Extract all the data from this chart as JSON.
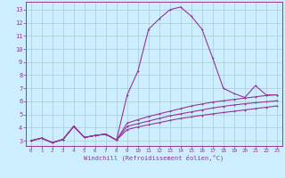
{
  "xlabel": "Windchill (Refroidissement éolien,°C)",
  "background_color": "#cceeff",
  "grid_color": "#aacccc",
  "line_color": "#993399",
  "x_values": [
    0,
    1,
    2,
    3,
    4,
    5,
    6,
    7,
    8,
    9,
    10,
    11,
    12,
    13,
    14,
    15,
    16,
    17,
    18,
    19,
    20,
    21,
    22,
    23
  ],
  "line1_y": [
    3.0,
    3.2,
    2.85,
    3.1,
    4.1,
    3.25,
    3.4,
    3.5,
    3.05,
    6.5,
    8.3,
    11.5,
    12.3,
    13.0,
    13.2,
    12.5,
    11.5,
    9.3,
    7.0,
    6.6,
    6.3,
    7.2,
    6.5,
    6.5
  ],
  "line2_y": [
    3.0,
    3.2,
    2.85,
    3.1,
    4.1,
    3.25,
    3.4,
    3.5,
    3.05,
    4.35,
    4.6,
    4.85,
    5.05,
    5.25,
    5.45,
    5.65,
    5.8,
    5.95,
    6.05,
    6.15,
    6.25,
    6.35,
    6.45,
    6.5
  ],
  "line3_y": [
    3.0,
    3.2,
    2.85,
    3.1,
    4.1,
    3.25,
    3.4,
    3.5,
    3.05,
    4.1,
    4.3,
    4.5,
    4.7,
    4.9,
    5.05,
    5.2,
    5.35,
    5.5,
    5.62,
    5.73,
    5.82,
    5.9,
    5.97,
    6.05
  ],
  "line4_y": [
    3.0,
    3.2,
    2.85,
    3.1,
    4.1,
    3.25,
    3.4,
    3.5,
    3.05,
    3.85,
    4.05,
    4.22,
    4.38,
    4.55,
    4.7,
    4.82,
    4.94,
    5.05,
    5.15,
    5.25,
    5.35,
    5.45,
    5.55,
    5.65
  ],
  "ylim": [
    2.6,
    13.6
  ],
  "xlim": [
    -0.5,
    23.5
  ],
  "yticks": [
    3,
    4,
    5,
    6,
    7,
    8,
    9,
    10,
    11,
    12,
    13
  ],
  "xticks": [
    0,
    1,
    2,
    3,
    4,
    5,
    6,
    7,
    8,
    9,
    10,
    11,
    12,
    13,
    14,
    15,
    16,
    17,
    18,
    19,
    20,
    21,
    22,
    23
  ]
}
